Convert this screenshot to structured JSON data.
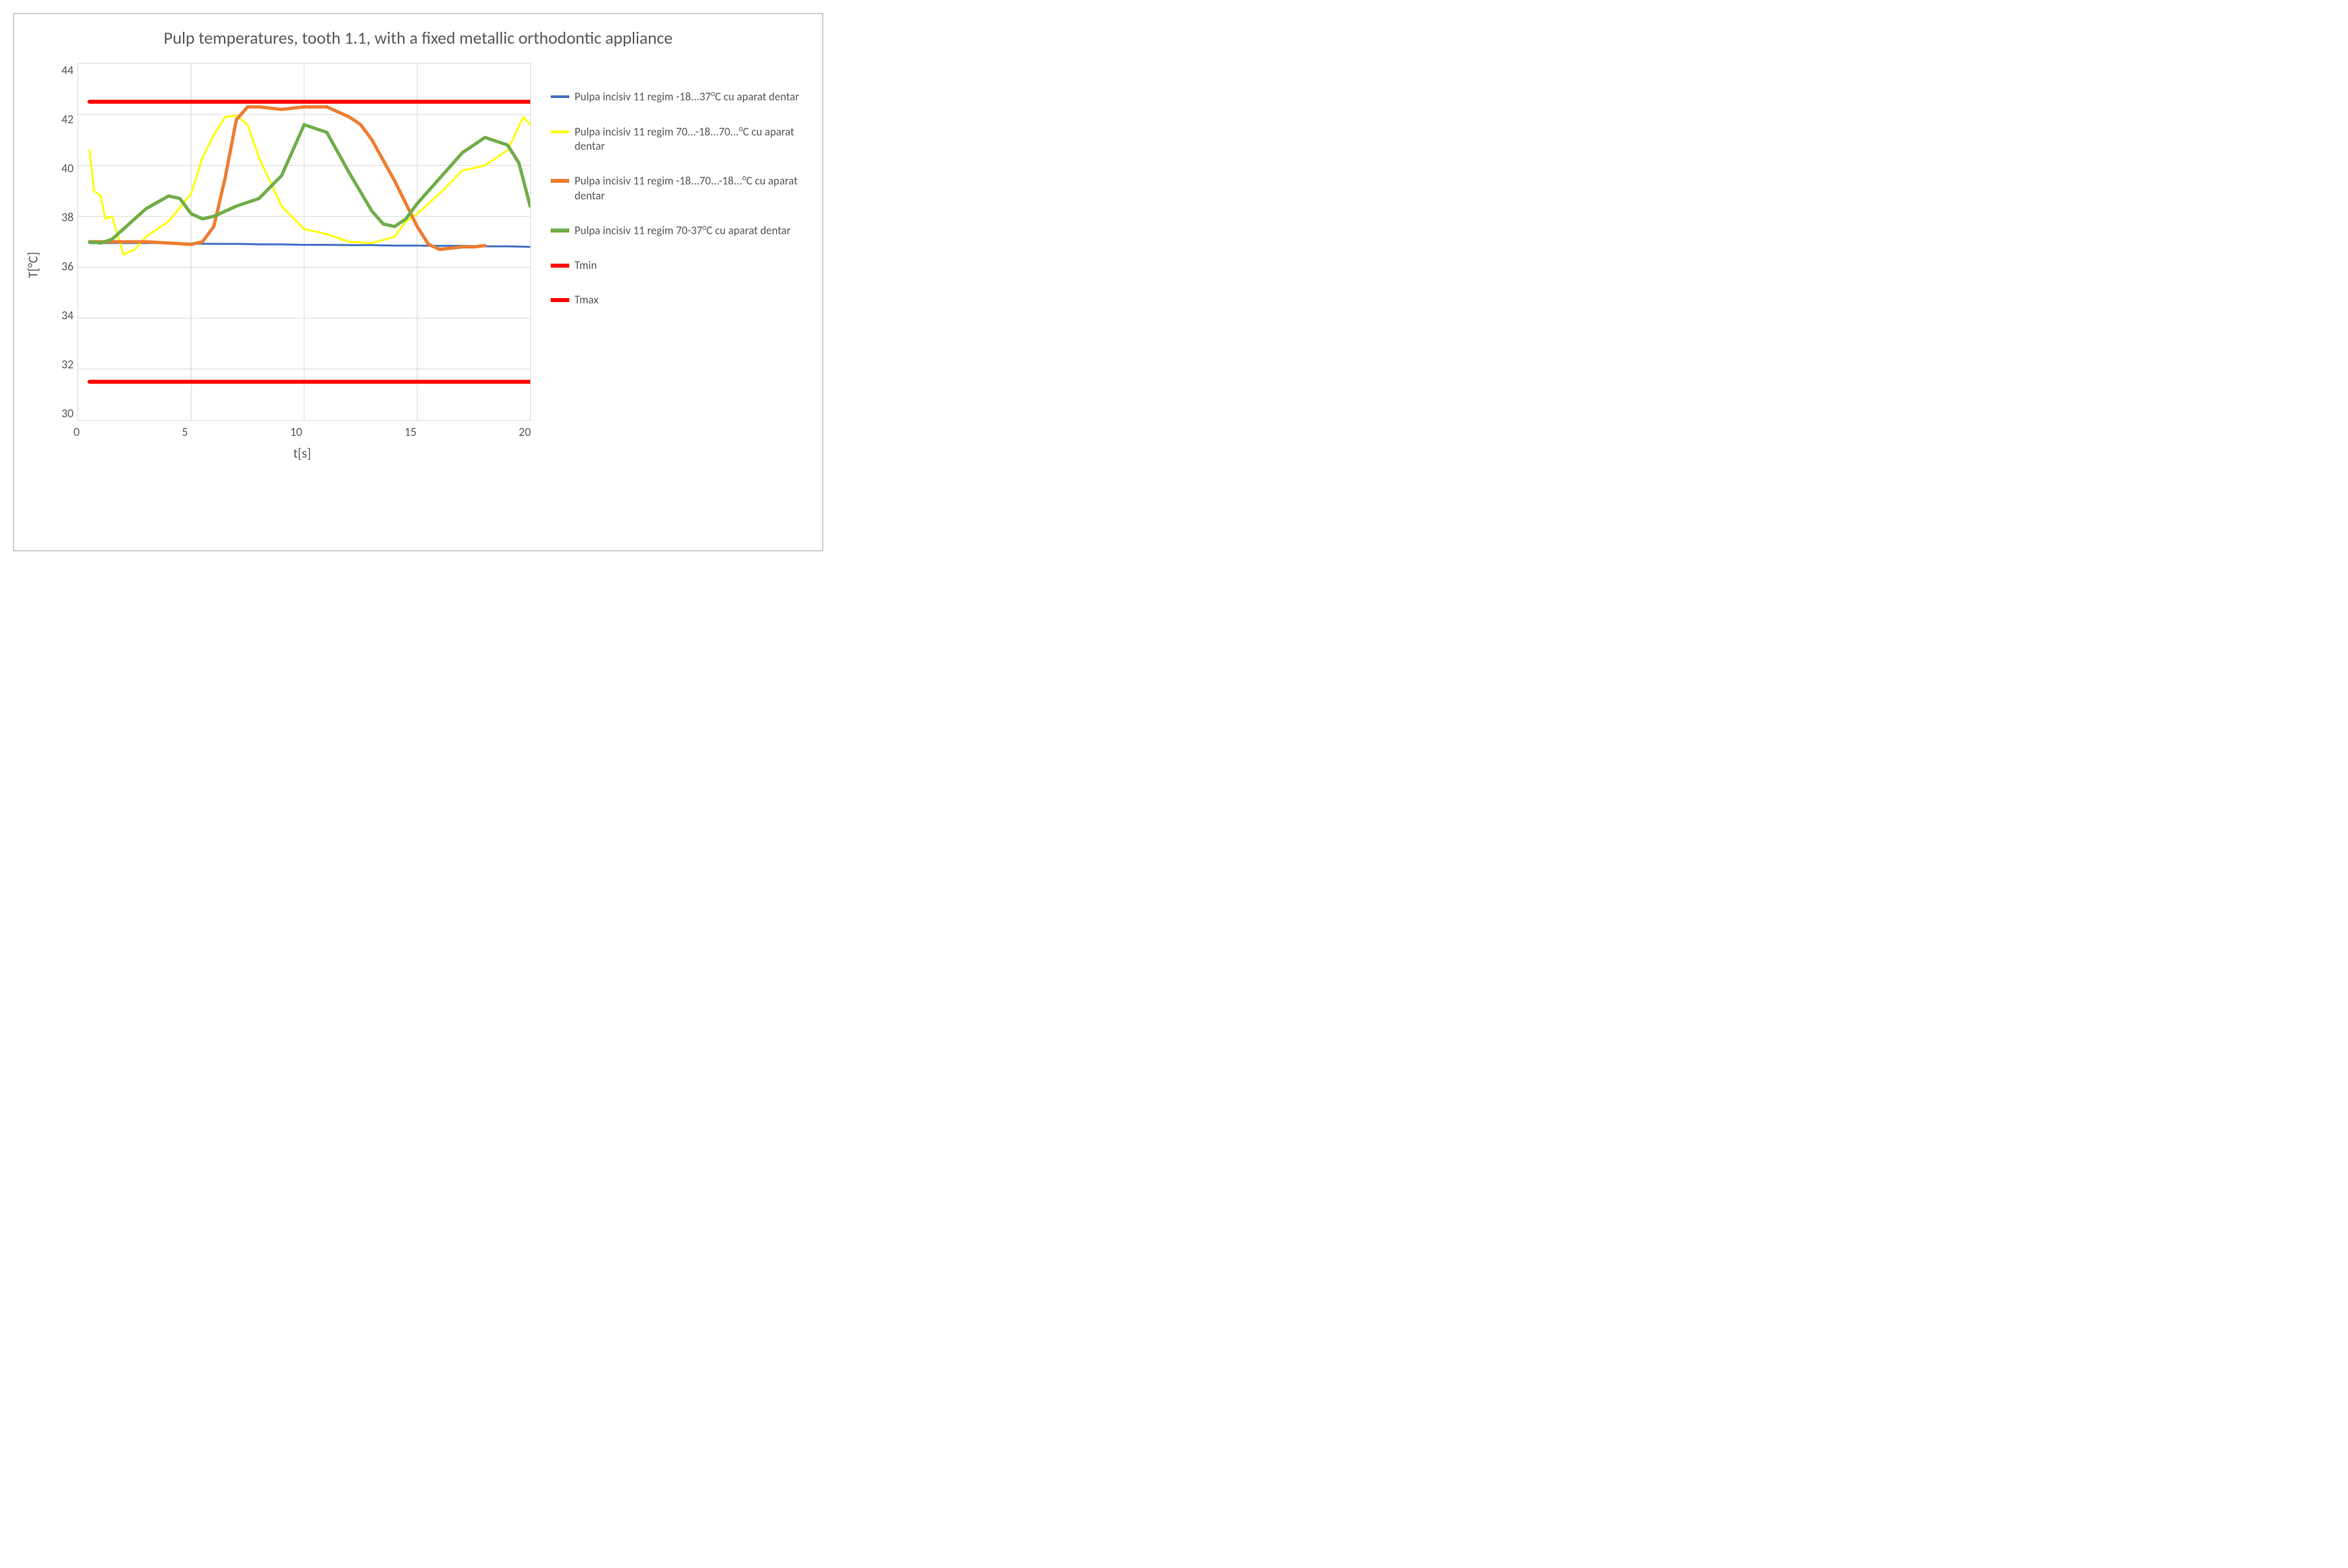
{
  "chart": {
    "type": "line",
    "title": "Pulp temperatures, tooth 1.1, with a fixed metallic orthodontic appliance",
    "title_fontsize": 26,
    "title_color": "#595959",
    "xlabel": "t[s]",
    "ylabel": "T[°C]",
    "label_fontsize": 20,
    "label_color": "#595959",
    "tick_fontsize": 18,
    "tick_color": "#595959",
    "xlim": [
      0,
      20
    ],
    "ylim": [
      30,
      44
    ],
    "xtick_step": 5,
    "ytick_step": 2,
    "xticks": [
      0,
      5,
      10,
      15,
      20
    ],
    "yticks": [
      30,
      32,
      34,
      36,
      38,
      40,
      42,
      44
    ],
    "background_color": "#ffffff",
    "grid_color": "#d9d9d9",
    "border_color": "#a6a6a6",
    "grid": true,
    "series": [
      {
        "name": "Pulpa incisiv 11 regim -18...37°C cu aparat dentar",
        "color": "#4472c4",
        "width": 3,
        "x": [
          0.5,
          1,
          2,
          3,
          4,
          5,
          6,
          7,
          8,
          9,
          10,
          11,
          12,
          13,
          14,
          15,
          16,
          17,
          18,
          19,
          20
        ],
        "y": [
          36.95,
          36.95,
          36.95,
          36.95,
          36.95,
          36.93,
          36.92,
          36.92,
          36.9,
          36.9,
          36.88,
          36.88,
          36.87,
          36.87,
          36.85,
          36.85,
          36.84,
          36.84,
          36.82,
          36.82,
          36.8
        ]
      },
      {
        "name": "Pulpa incisiv 11 regim 70...-18...70...°C  cu aparat dentar",
        "color": "#ffff00",
        "width": 3,
        "x": [
          0.5,
          0.7,
          1,
          1.2,
          1.5,
          2,
          2.5,
          3,
          4,
          5,
          5.5,
          6,
          6.5,
          7,
          7.5,
          8,
          9,
          10,
          11,
          12,
          13,
          14,
          14.5,
          15,
          16,
          17,
          17.5,
          18,
          19,
          19.7,
          20
        ],
        "y": [
          40.6,
          39.0,
          38.8,
          37.9,
          38.0,
          36.5,
          36.7,
          37.2,
          37.8,
          38.9,
          40.3,
          41.2,
          41.9,
          41.95,
          41.6,
          40.3,
          38.4,
          37.5,
          37.3,
          37.0,
          36.95,
          37.2,
          37.8,
          38.1,
          38.9,
          39.8,
          39.9,
          40.0,
          40.6,
          41.9,
          41.6
        ]
      },
      {
        "name": "Pulpa incisiv 11 regim -18...70...-18...°C cu aparat dentar",
        "color": "#ed7d31",
        "width": 5,
        "x": [
          0.5,
          1,
          2,
          3,
          4,
          5,
          5.5,
          6,
          6.5,
          7,
          7.5,
          8,
          9,
          10,
          11,
          12,
          12.5,
          13,
          14,
          15,
          15.5,
          16,
          17,
          17.5,
          18
        ],
        "y": [
          37.0,
          37.0,
          37.0,
          37.0,
          36.95,
          36.9,
          37.0,
          37.6,
          39.5,
          41.8,
          42.3,
          42.3,
          42.2,
          42.3,
          42.3,
          41.9,
          41.6,
          41.0,
          39.4,
          37.6,
          36.9,
          36.7,
          36.8,
          36.8,
          36.85
        ]
      },
      {
        "name": "Pulpa incisiv 11 regim 70-37°C cu aparat dentar",
        "color": "#70ad47",
        "width": 5,
        "x": [
          0.5,
          1,
          1.5,
          2,
          3,
          4,
          4.5,
          5,
          5.5,
          6,
          7,
          8,
          9,
          10,
          11,
          12,
          13,
          13.5,
          14,
          14.5,
          15,
          16,
          17,
          18,
          19,
          19.5,
          20
        ],
        "y": [
          37.0,
          36.95,
          37.1,
          37.5,
          38.3,
          38.8,
          38.7,
          38.1,
          37.9,
          38.0,
          38.4,
          38.7,
          39.6,
          41.6,
          41.3,
          39.7,
          38.2,
          37.7,
          37.6,
          37.9,
          38.5,
          39.5,
          40.5,
          41.1,
          40.8,
          40.1,
          38.4
        ]
      },
      {
        "name": "Tmin",
        "color": "#ff0000",
        "width": 6,
        "x": [
          0.5,
          20
        ],
        "y": [
          42.5,
          42.5
        ]
      },
      {
        "name": "Tmax",
        "color": "#ff0000",
        "width": 6,
        "x": [
          0.5,
          20
        ],
        "y": [
          31.5,
          31.5
        ]
      }
    ],
    "legend": {
      "position": "right",
      "fontsize": 17,
      "color": "#595959"
    }
  }
}
